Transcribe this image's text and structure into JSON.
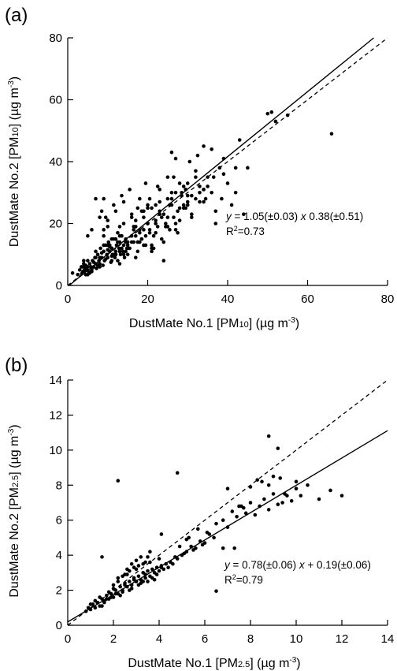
{
  "chart_data": [
    {
      "type": "scatter",
      "panel_label": "(a)",
      "xlabel_main": "DustMate No.1 [PM",
      "xlabel_sub": "10",
      "xlabel_unit": "] (µg m",
      "xlabel_sup": "-3",
      "xlabel_end": ")",
      "ylabel_main": "DustMate No.2 [PM",
      "ylabel_sub": "10",
      "ylabel_unit": "] (µg m",
      "ylabel_sup": "-3",
      "ylabel_end": ")",
      "xlim": [
        0,
        80
      ],
      "ylim": [
        0,
        80
      ],
      "xticks": [
        0,
        20,
        40,
        60,
        80
      ],
      "yticks": [
        0,
        20,
        40,
        60,
        80
      ],
      "xtick_labels": [
        "0",
        "20",
        "40",
        "60",
        "80"
      ],
      "ytick_labels": [
        "0",
        "20",
        "40",
        "60",
        "80"
      ],
      "equation_y": "y",
      "equation_mid": " = 1.05(±0.03) ",
      "equation_x": "x",
      "equation_end": " 0.38(±0.51)",
      "r2_label": "R",
      "r2_sup": "2",
      "r2_value": "=0.73",
      "fit": {
        "slope": 1.05,
        "intercept": -0.38
      },
      "one_to_one": true,
      "points_x": [
        1.2,
        2.5,
        3,
        3.4,
        3.8,
        4,
        4.2,
        4.5,
        4.8,
        5,
        5.2,
        5.5,
        5.8,
        6,
        6.2,
        6.5,
        6.8,
        7,
        7.2,
        7.5,
        7.8,
        8,
        8.2,
        8.5,
        8.8,
        9,
        9.2,
        9.5,
        9.8,
        10,
        10.2,
        10.5,
        10.8,
        11,
        11.2,
        11.5,
        11.8,
        12,
        12.2,
        12.5,
        12.8,
        13,
        13.2,
        13.5,
        13.8,
        14,
        14.2,
        14.5,
        14.8,
        15,
        3.5,
        4.5,
        5.5,
        6.5,
        7.5,
        8.5,
        9.5,
        10.5,
        11.5,
        12.5,
        13.5,
        14.5,
        5,
        6,
        7,
        8,
        9,
        10,
        11,
        12,
        13,
        14,
        4,
        5,
        6,
        7,
        8,
        9,
        10,
        11,
        12,
        13,
        15.5,
        16,
        16.5,
        17,
        17.5,
        18,
        18.5,
        19,
        19.5,
        20,
        20.5,
        21,
        21.5,
        22,
        22.5,
        23,
        23.5,
        24,
        24.5,
        25,
        25.5,
        26,
        26.5,
        27,
        27.5,
        28,
        28.5,
        29,
        29.5,
        30,
        15,
        16,
        17,
        18,
        19,
        20,
        21,
        22,
        23,
        24,
        25,
        26,
        27,
        28,
        29,
        30,
        31,
        32,
        33,
        34,
        16.5,
        17.5,
        18.5,
        19.5,
        20.5,
        21.5,
        22.5,
        23.5,
        24.5,
        25.5,
        26.5,
        27.5,
        28.5,
        29.5,
        12,
        13,
        14,
        15,
        16,
        17,
        18,
        19,
        20,
        21,
        22,
        23,
        24,
        25,
        26,
        27,
        9,
        10,
        11,
        12,
        13,
        14,
        15,
        16,
        17,
        18,
        19,
        20,
        21,
        22,
        9.5,
        10.5,
        11.5,
        12.5,
        13.5,
        14.5,
        15.5,
        16.5,
        17.5,
        18.5,
        19.5,
        20.5,
        30,
        31,
        32,
        33,
        34,
        35,
        36,
        37,
        38,
        39,
        40,
        41,
        42,
        30.5,
        32.5,
        34.5,
        36.5,
        38.5,
        26,
        28,
        30,
        32,
        34,
        36,
        23,
        25,
        27,
        29,
        31,
        33,
        35,
        37,
        39,
        34,
        42,
        43,
        44,
        45,
        50,
        51,
        52,
        55,
        66,
        8.5,
        9,
        10,
        11,
        12,
        13,
        7,
        8,
        6,
        5,
        4.5,
        3.8
      ],
      "points_y": [
        4,
        3.5,
        5,
        6,
        4.5,
        7,
        5,
        6.5,
        5,
        8,
        4.5,
        7,
        6,
        5.5,
        8,
        6,
        9,
        7,
        5.5,
        10,
        8,
        7,
        12,
        9,
        6.5,
        11,
        8,
        13,
        10,
        9,
        14,
        11,
        7.5,
        12,
        10,
        15,
        9,
        11,
        13,
        8,
        12,
        14,
        10,
        16,
        11,
        13,
        9,
        15,
        12,
        14,
        3.8,
        5.5,
        4,
        7.5,
        6.5,
        10.5,
        8.5,
        12.5,
        10,
        14,
        12,
        11,
        3.5,
        5,
        9,
        6,
        13,
        11.5,
        9.5,
        15,
        11,
        10,
        8,
        6,
        4.5,
        11,
        9,
        16,
        13,
        12,
        10,
        7,
        12,
        16,
        14,
        19,
        11,
        18,
        15,
        22,
        13,
        20,
        17,
        25,
        16,
        21,
        19,
        27,
        15,
        23,
        20,
        28,
        18,
        26,
        22,
        30,
        24,
        21,
        29,
        25,
        31,
        27,
        10,
        14,
        21,
        17,
        13,
        25,
        11,
        20,
        24,
        14,
        22,
        30,
        18,
        33,
        26,
        29,
        23,
        35,
        27,
        31,
        18,
        14,
        24,
        16,
        28,
        12,
        32,
        22,
        19,
        26,
        35,
        17,
        30,
        25,
        10,
        16,
        20,
        12,
        22,
        9,
        14,
        18,
        26,
        13,
        17,
        23,
        8,
        19,
        28,
        20,
        18,
        21,
        15,
        24,
        19,
        27,
        13,
        23,
        16,
        28,
        24,
        20,
        12,
        26,
        22,
        13,
        26,
        17,
        29,
        14,
        31,
        19,
        25,
        15,
        33,
        18,
        26,
        22,
        28,
        32,
        27,
        35,
        30,
        24,
        38,
        36,
        33,
        26,
        30,
        40,
        42,
        28,
        35,
        28,
        43,
        25,
        33,
        37,
        45,
        44,
        31,
        35,
        41,
        32,
        29,
        30,
        32,
        20,
        41,
        31,
        38,
        47,
        23,
        38,
        55.5,
        56,
        53,
        55,
        49,
        24,
        28,
        19,
        8,
        15,
        11,
        28,
        22,
        18,
        16,
        3.5,
        6
      ]
    },
    {
      "type": "scatter",
      "panel_label": "(b)",
      "xlabel_main": "DustMate No.1 [PM",
      "xlabel_sub": "2.5",
      "xlabel_unit": "] (µg m",
      "xlabel_sup": "-3",
      "xlabel_end": ")",
      "ylabel_main": "DustMate No.2 [PM",
      "ylabel_sub": "2.5",
      "ylabel_unit": "] (µg m",
      "ylabel_sup": "-3",
      "ylabel_end": ")",
      "xlim": [
        0,
        14
      ],
      "ylim": [
        0,
        14
      ],
      "xticks": [
        0,
        2,
        4,
        6,
        8,
        10,
        12,
        14
      ],
      "yticks": [
        0,
        2,
        4,
        6,
        8,
        10,
        12,
        14
      ],
      "xtick_labels": [
        "0",
        "2",
        "4",
        "6",
        "8",
        "10",
        "12",
        "14"
      ],
      "ytick_labels": [
        "0",
        "2",
        "4",
        "6",
        "8",
        "10",
        "12",
        "14"
      ],
      "equation_y": "y",
      "equation_mid": " = 0.78(±0.06) ",
      "equation_x": "x",
      "equation_end": " + 0.19(±0.06)",
      "r2_label": "R",
      "r2_sup": "2",
      "r2_value": "=0.79",
      "fit": {
        "slope": 0.78,
        "intercept": 0.19
      },
      "one_to_one": true,
      "points_x": [
        0.8,
        0.9,
        1,
        1.1,
        1.2,
        1.3,
        1.4,
        1.5,
        1.6,
        1.7,
        1.8,
        1.9,
        2,
        2.1,
        2.2,
        2.3,
        2.4,
        2.5,
        2.6,
        2.7,
        2.8,
        2.9,
        3,
        3.1,
        3.2,
        3.3,
        3.4,
        3.5,
        3.6,
        3.7,
        3.8,
        3.9,
        4,
        4.1,
        4.2,
        4.3,
        4.4,
        4.5,
        1,
        1.2,
        1.4,
        1.6,
        1.8,
        2,
        2.2,
        2.4,
        2.6,
        2.8,
        3,
        3.2,
        3.4,
        3.6,
        3.8,
        4,
        1.5,
        1.7,
        1.9,
        2.1,
        2.3,
        2.5,
        2.7,
        2.9,
        3.1,
        3.3,
        3.5,
        3.7,
        3.9,
        4.1,
        2.5,
        2.7,
        2.9,
        3.1,
        3.3,
        3.5,
        2,
        2.2,
        2.4,
        2.6,
        2.8,
        3,
        3.2,
        3.4,
        3.6,
        4.6,
        4.8,
        5,
        5.2,
        5.4,
        5.6,
        5.8,
        6,
        6.2,
        6.4,
        4.7,
        4.9,
        5.1,
        5.3,
        5.5,
        5.7,
        5.9,
        6.1,
        6.5,
        6.8,
        7,
        7.2,
        7.4,
        7.6,
        7.8,
        8,
        8.2,
        8.4,
        8.6,
        8.8,
        9,
        9.2,
        9.4,
        9.6,
        9.8,
        10,
        10.2,
        10.5,
        11,
        11.5,
        12,
        6.8,
        7.5,
        8,
        8.5,
        9,
        9.5,
        10,
        8.3,
        8.8,
        9.3,
        7,
        7.7,
        2.2,
        4.8,
        8.8,
        9.2,
        1.5,
        6.5,
        7.3,
        4.1,
        5.2
      ],
      "points_y": [
        0.8,
        1,
        0.9,
        1.2,
        1,
        1.3,
        1.1,
        1.5,
        1.3,
        1.7,
        1.5,
        1.8,
        1.6,
        2,
        1.8,
        2.2,
        2,
        2.4,
        2.2,
        2.5,
        2.3,
        2.7,
        2.5,
        2.8,
        2.6,
        3,
        2.7,
        3.1,
        2.8,
        3.2,
        3,
        3.3,
        3.1,
        3.4,
        3.2,
        3.5,
        3.3,
        3.6,
        1.2,
        1.4,
        1.6,
        1.4,
        1.9,
        2.1,
        2.5,
        1.9,
        2.9,
        2.1,
        3.2,
        2.4,
        2.9,
        3.6,
        2.6,
        3.8,
        1.1,
        1.5,
        1.6,
        1.8,
        1.7,
        2.3,
        2,
        2.6,
        2.3,
        2.5,
        2.5,
        2.7,
        2.9,
        3.3,
        2.9,
        3.1,
        3.3,
        3.4,
        3.5,
        3.9,
        2.3,
        2.7,
        2.8,
        3.2,
        3.5,
        3.7,
        3.9,
        3.6,
        4.2,
        3.5,
        3.8,
        4,
        4.2,
        4.5,
        4.4,
        4.8,
        4.7,
        5.2,
        5,
        3.9,
        4.5,
        4.1,
        5,
        4.3,
        5.5,
        4.6,
        5.3,
        5.8,
        6,
        5.6,
        6.5,
        6.2,
        6.8,
        6.4,
        7,
        6.3,
        6.8,
        7.2,
        6.6,
        7.5,
        6.9,
        7,
        7.4,
        7.1,
        7.8,
        7.4,
        8,
        7.2,
        7.7,
        7.4,
        4.4,
        6.8,
        7.9,
        8.2,
        8.5,
        7.5,
        8.2,
        8.3,
        8,
        8.4,
        7.8,
        6.7,
        8.25,
        8.7,
        10.8,
        10.1,
        3.9,
        1.95,
        4.4,
        5.2,
        4.9
      ]
    }
  ]
}
